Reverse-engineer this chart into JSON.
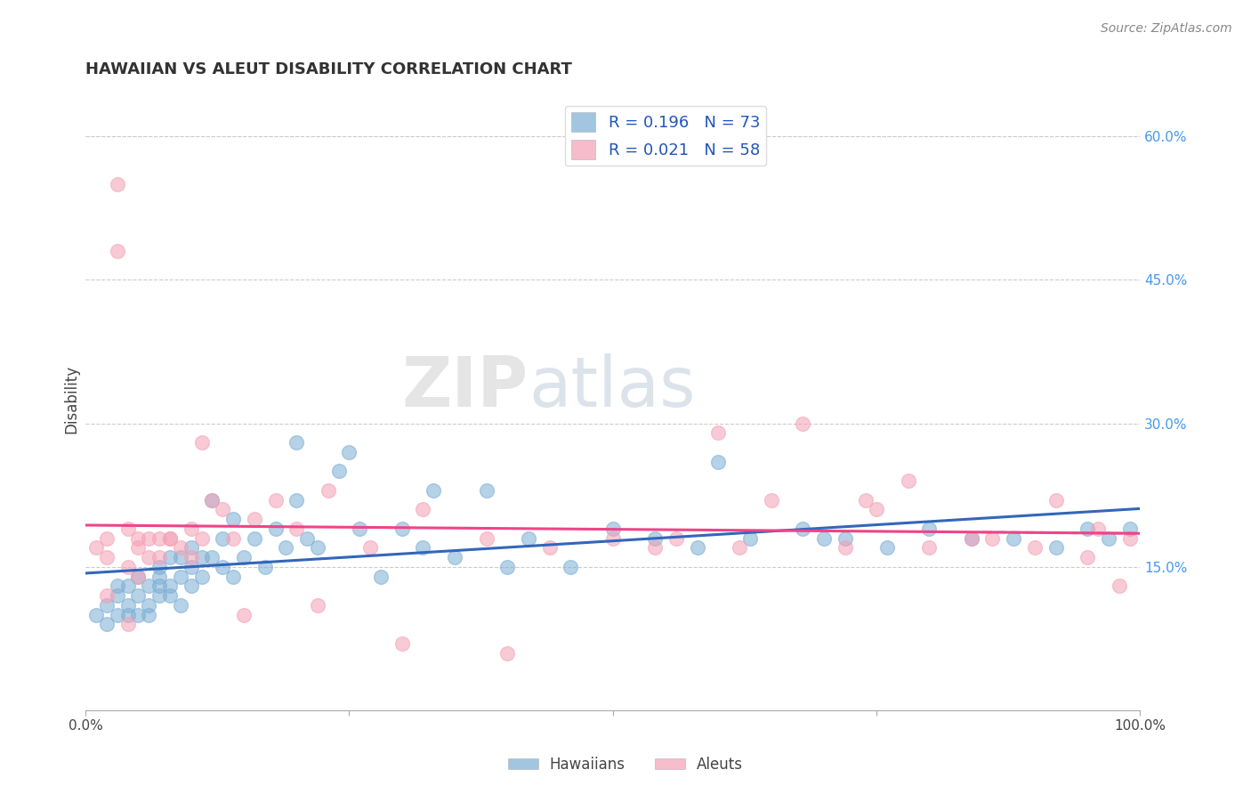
{
  "title": "HAWAIIAN VS ALEUT DISABILITY CORRELATION CHART",
  "source_text": "Source: ZipAtlas.com",
  "ylabel": "Disability",
  "xlim": [
    0.0,
    1.0
  ],
  "ylim": [
    0.0,
    0.65
  ],
  "xtick_vals": [
    0.0,
    0.25,
    0.5,
    0.75,
    1.0
  ],
  "xtick_labels": [
    "0.0%",
    "",
    "",
    "",
    "100.0%"
  ],
  "ytick_vals": [
    0.15,
    0.3,
    0.45,
    0.6
  ],
  "ytick_labels": [
    "15.0%",
    "30.0%",
    "45.0%",
    "60.0%"
  ],
  "hawaiian_color": "#7BADD4",
  "aleut_color": "#F4A0B5",
  "hawaiian_line_color": "#3366BB",
  "aleut_line_color": "#EE4488",
  "hawaiian_R": 0.196,
  "hawaiian_N": 73,
  "aleut_R": 0.021,
  "aleut_N": 58,
  "watermark_zip": "ZIP",
  "watermark_atlas": "atlas",
  "background_color": "#FFFFFF",
  "grid_color": "#CCCCCC",
  "hawaiian_x": [
    0.01,
    0.02,
    0.02,
    0.03,
    0.03,
    0.03,
    0.04,
    0.04,
    0.04,
    0.05,
    0.05,
    0.05,
    0.06,
    0.06,
    0.06,
    0.07,
    0.07,
    0.07,
    0.07,
    0.08,
    0.08,
    0.08,
    0.09,
    0.09,
    0.09,
    0.1,
    0.1,
    0.1,
    0.11,
    0.11,
    0.12,
    0.12,
    0.13,
    0.13,
    0.14,
    0.14,
    0.15,
    0.16,
    0.17,
    0.18,
    0.19,
    0.2,
    0.21,
    0.22,
    0.24,
    0.26,
    0.28,
    0.3,
    0.32,
    0.35,
    0.38,
    0.42,
    0.46,
    0.5,
    0.54,
    0.58,
    0.63,
    0.68,
    0.72,
    0.76,
    0.8,
    0.84,
    0.88,
    0.92,
    0.95,
    0.97,
    0.99,
    0.2,
    0.25,
    0.33,
    0.4,
    0.6,
    0.7
  ],
  "hawaiian_y": [
    0.1,
    0.11,
    0.09,
    0.12,
    0.1,
    0.13,
    0.11,
    0.13,
    0.1,
    0.12,
    0.1,
    0.14,
    0.13,
    0.11,
    0.1,
    0.14,
    0.12,
    0.15,
    0.13,
    0.13,
    0.16,
    0.12,
    0.14,
    0.16,
    0.11,
    0.15,
    0.13,
    0.17,
    0.14,
    0.16,
    0.16,
    0.22,
    0.15,
    0.18,
    0.14,
    0.2,
    0.16,
    0.18,
    0.15,
    0.19,
    0.17,
    0.28,
    0.18,
    0.17,
    0.25,
    0.19,
    0.14,
    0.19,
    0.17,
    0.16,
    0.23,
    0.18,
    0.15,
    0.19,
    0.18,
    0.17,
    0.18,
    0.19,
    0.18,
    0.17,
    0.19,
    0.18,
    0.18,
    0.17,
    0.19,
    0.18,
    0.19,
    0.22,
    0.27,
    0.23,
    0.15,
    0.26,
    0.18
  ],
  "aleut_x": [
    0.01,
    0.02,
    0.02,
    0.03,
    0.03,
    0.04,
    0.04,
    0.05,
    0.05,
    0.06,
    0.06,
    0.07,
    0.07,
    0.08,
    0.09,
    0.1,
    0.1,
    0.11,
    0.12,
    0.13,
    0.14,
    0.16,
    0.18,
    0.2,
    0.23,
    0.27,
    0.32,
    0.38,
    0.44,
    0.5,
    0.56,
    0.62,
    0.68,
    0.74,
    0.8,
    0.86,
    0.92,
    0.96,
    0.99,
    0.65,
    0.72,
    0.78,
    0.84,
    0.9,
    0.95,
    0.98,
    0.15,
    0.22,
    0.3,
    0.4,
    0.02,
    0.05,
    0.08,
    0.11,
    0.54,
    0.04,
    0.75,
    0.6
  ],
  "aleut_y": [
    0.17,
    0.18,
    0.16,
    0.55,
    0.48,
    0.19,
    0.15,
    0.17,
    0.18,
    0.16,
    0.18,
    0.18,
    0.16,
    0.18,
    0.17,
    0.16,
    0.19,
    0.18,
    0.22,
    0.21,
    0.18,
    0.2,
    0.22,
    0.19,
    0.23,
    0.17,
    0.21,
    0.18,
    0.17,
    0.18,
    0.18,
    0.17,
    0.3,
    0.22,
    0.17,
    0.18,
    0.22,
    0.19,
    0.18,
    0.22,
    0.17,
    0.24,
    0.18,
    0.17,
    0.16,
    0.13,
    0.1,
    0.11,
    0.07,
    0.06,
    0.12,
    0.14,
    0.18,
    0.28,
    0.17,
    0.09,
    0.21,
    0.29
  ]
}
